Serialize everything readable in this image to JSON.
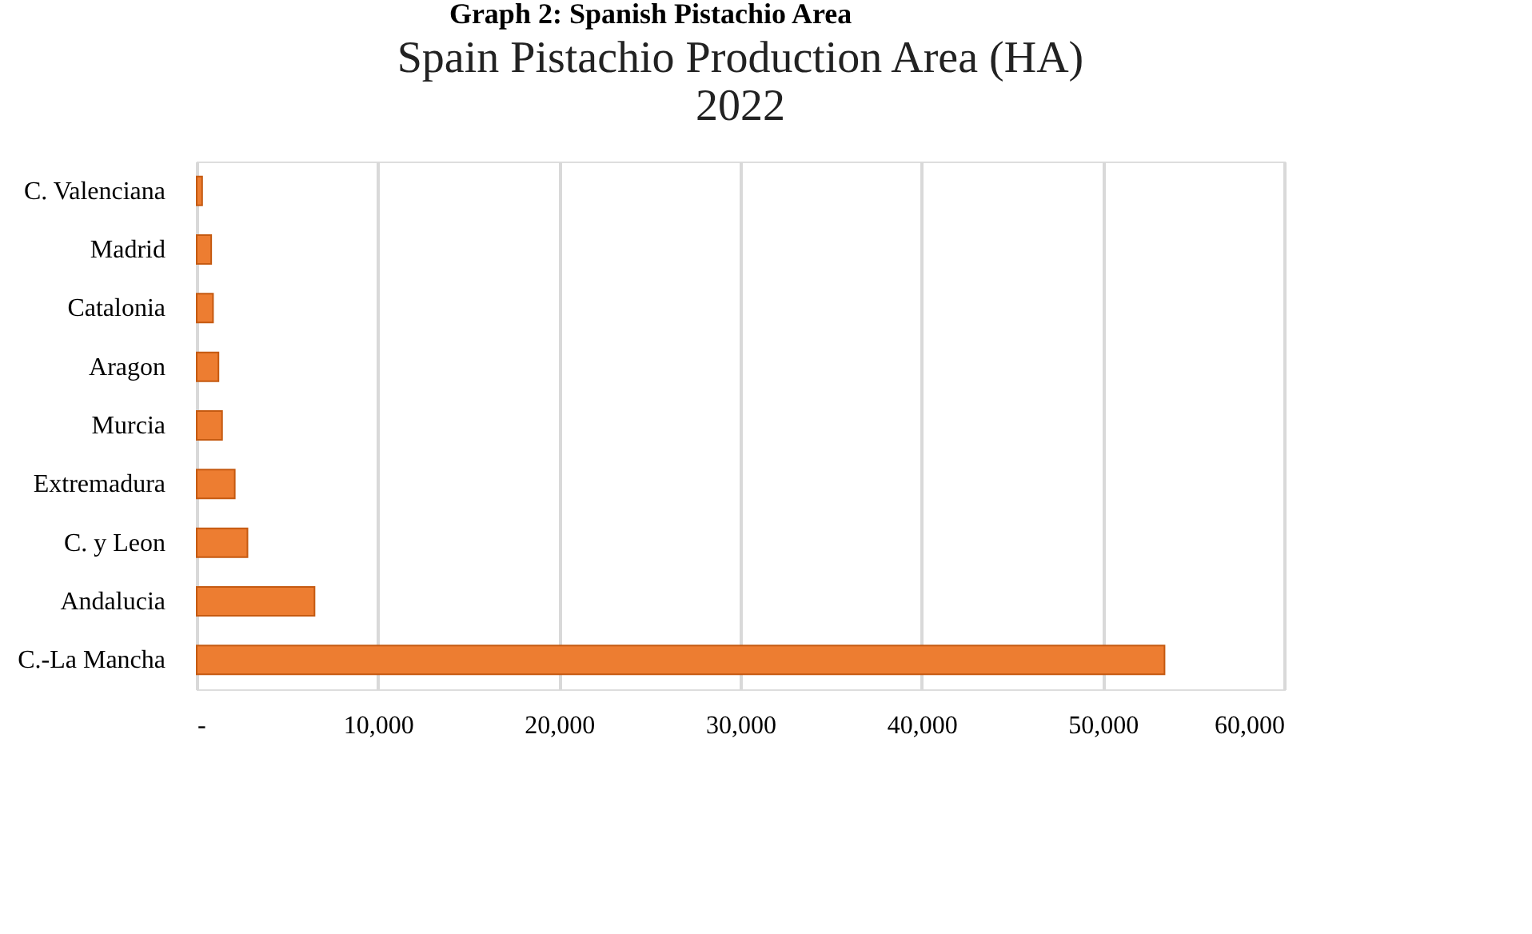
{
  "chart_data": {
    "type": "bar",
    "orientation": "horizontal",
    "title": [
      "Spain Pistachio Production Area (HA)",
      "2022"
    ],
    "annotations": [
      "Graph 2: Spanish Pistachio Area"
    ],
    "categories": [
      "C. Valenciana",
      "Madrid",
      "Catalonia",
      "Aragon",
      "Murcia",
      "Extremadura",
      "C. y Leon",
      "Andalucia",
      "C.-La Mancha"
    ],
    "values": [
      300,
      800,
      900,
      1200,
      1400,
      2100,
      2800,
      6500,
      53400
    ],
    "color": "#ed7d31",
    "xlim": [
      0,
      60000
    ],
    "xticks": [
      {
        "value": 0,
        "label": "-"
      },
      {
        "value": 10000,
        "label": "10,000"
      },
      {
        "value": 20000,
        "label": "20,000"
      },
      {
        "value": 30000,
        "label": "30,000"
      },
      {
        "value": 40000,
        "label": "40,000"
      },
      {
        "value": 50000,
        "label": "50,000"
      },
      {
        "value": 60000,
        "label": "60,000"
      }
    ],
    "grid": "x"
  }
}
